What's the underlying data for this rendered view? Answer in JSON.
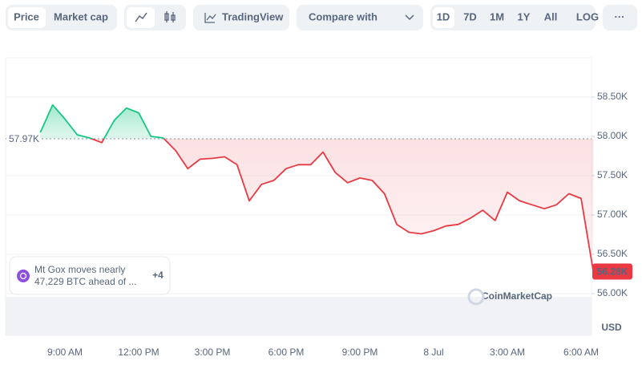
{
  "toolbar": {
    "price": "Price",
    "market_cap": "Market cap",
    "tradingview": "TradingView",
    "compare": "Compare with",
    "ranges": [
      "1D",
      "7D",
      "1M",
      "1Y",
      "All"
    ],
    "log": "LOG",
    "more": "···"
  },
  "annotation": {
    "text_line1": "Mt Gox moves nearly",
    "text_line2": "47,229 BTC ahead of ...",
    "count": "+4"
  },
  "watermark": "CoinMarketCap",
  "chart_data": {
    "type": "line",
    "categories": [
      null,
      null,
      "9:00 AM",
      null,
      null,
      null,
      null,
      null,
      "12:00 PM",
      null,
      null,
      null,
      null,
      null,
      "3:00 PM",
      null,
      null,
      null,
      null,
      null,
      "6:00 PM",
      null,
      null,
      null,
      null,
      null,
      "9:00 PM",
      null,
      null,
      null,
      null,
      null,
      "8 Jul",
      null,
      null,
      null,
      null,
      null,
      "3:00 AM",
      null,
      null,
      null,
      null,
      null,
      "6:00 AM",
      null
    ],
    "values": [
      58050,
      58400,
      58220,
      58020,
      57980,
      57920,
      58200,
      58360,
      58300,
      58000,
      57980,
      57820,
      57590,
      57710,
      57720,
      57740,
      57640,
      57180,
      57390,
      57440,
      57590,
      57640,
      57640,
      57800,
      57540,
      57410,
      57470,
      57440,
      57270,
      56880,
      56780,
      56760,
      56800,
      56860,
      56880,
      56960,
      57060,
      56930,
      57290,
      57180,
      57130,
      57080,
      57130,
      57270,
      57210,
      56280
    ],
    "value_labels": [
      null,
      null,
      null,
      null,
      null,
      null,
      null,
      null,
      null,
      null,
      null,
      null,
      null,
      null,
      null,
      null,
      null,
      null,
      null,
      null,
      null,
      null,
      null,
      null,
      null,
      null,
      null,
      null,
      null,
      null,
      null,
      null,
      null,
      null,
      null,
      null,
      null,
      null,
      null,
      null,
      null,
      null,
      null,
      null,
      null,
      "56.28K"
    ],
    "baseline": {
      "value": 57970,
      "label": "57.97K"
    },
    "up_color": "#16c784",
    "down_color": "#ea3943",
    "y_unit": "USD",
    "ylim": [
      55500,
      59000
    ],
    "yticks": [
      {
        "value": 56000,
        "label": "56.00K"
      },
      {
        "value": 56500,
        "label": "56.50K"
      },
      {
        "value": 57000,
        "label": "57.00K"
      },
      {
        "value": 57500,
        "label": "57.50K"
      },
      {
        "value": 58000,
        "label": "58.00K"
      },
      {
        "value": 58500,
        "label": "58.50K"
      }
    ],
    "grid": true
  }
}
